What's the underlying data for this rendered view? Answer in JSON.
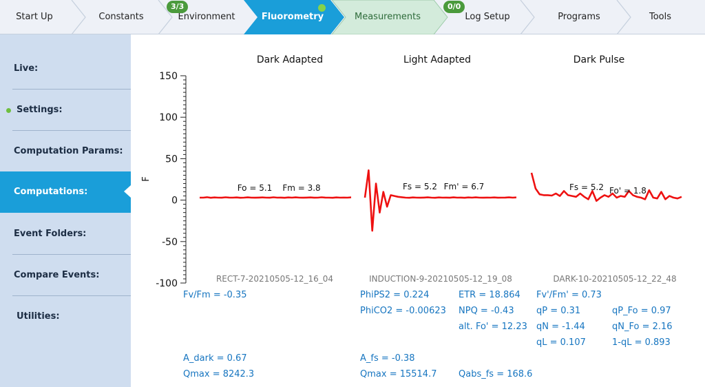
{
  "nav": {
    "tabs": [
      {
        "label": "Start Up",
        "badge": ""
      },
      {
        "label": "Constants",
        "badge": ""
      },
      {
        "label": "Environment",
        "badge": "3/3"
      },
      {
        "label": "Fluorometry",
        "badge": ""
      },
      {
        "label": "Measurements",
        "badge": ""
      },
      {
        "label": "Log Setup",
        "badge": "0/0"
      },
      {
        "label": "Programs",
        "badge": ""
      },
      {
        "label": "Tools",
        "badge": ""
      }
    ],
    "active_color": "#1a9ed9",
    "measurements_color": "#d3ebdb",
    "badge_color": "#4a9a3c"
  },
  "sidebar": {
    "items": [
      {
        "label": "Live:"
      },
      {
        "label": "Settings:"
      },
      {
        "label": "Computation Params:"
      },
      {
        "label": "Computations:"
      },
      {
        "label": "Event Folders:"
      },
      {
        "label": "Compare Events:"
      },
      {
        "label": "Utilities:"
      }
    ],
    "active_index": 3,
    "bg_color": "#cfddef"
  },
  "chart_data": {
    "type": "line",
    "ylabel": "F",
    "ylim": [
      -100,
      150
    ],
    "yticks": [
      "150",
      "100",
      "50",
      "0",
      "-50",
      "-100"
    ],
    "line_color": "#ee1111",
    "panels": [
      {
        "title": "Dark Adapted",
        "event": "RECT-7-20210505-12_16_04",
        "labels": [
          "Fo = 5.1",
          "Fm = 3.8"
        ],
        "values": [
          3,
          3,
          3.5,
          2.8,
          3.2,
          3,
          2.9,
          3.4,
          3.1,
          3,
          3.2,
          2.8,
          3,
          3.3,
          3,
          2.9,
          3.1,
          3.2,
          3,
          2.9,
          3.4,
          3,
          3.1,
          2.8,
          3.2,
          3,
          3.3,
          3,
          2.9,
          3.1,
          3.2,
          2.9,
          3,
          3.4,
          3.1,
          3,
          2.8,
          3.2,
          3,
          3.1,
          3,
          3.3
        ]
      },
      {
        "title": "Light Adapted",
        "event": "INDUCTION-9-20210505-12_19_08",
        "labels": [
          "Fs = 5.2",
          "Fm' = 6.7"
        ],
        "values": [
          3,
          36,
          -37,
          20,
          -15,
          10,
          -8,
          6,
          5,
          4,
          3.5,
          3,
          2.8,
          3.2,
          3,
          2.9,
          3.1,
          3.3,
          3,
          2.8,
          3.2,
          3,
          3.1,
          2.9,
          3.3,
          3,
          3.1,
          2.8,
          3.2,
          3,
          3.3,
          3,
          2.9,
          3.1,
          3,
          3.2,
          2.9,
          3,
          3.1,
          3.3,
          3,
          3.2
        ]
      },
      {
        "title": "Dark Pulse",
        "event": "DARK-10-20210505-12_22_48",
        "labels": [
          "Fs = 5.2",
          "Fo' = 1.8"
        ],
        "values": [
          33,
          14,
          7,
          6,
          6,
          5.5,
          8,
          5,
          11,
          6,
          5,
          4,
          8,
          4,
          1,
          11,
          -1,
          3,
          6,
          4,
          8,
          3,
          5,
          4,
          11,
          6,
          4,
          3,
          1,
          12,
          3,
          2,
          10,
          1,
          5,
          3,
          2,
          4
        ]
      }
    ]
  },
  "results": {
    "dark": {
      "fvfm": "Fv/Fm = -0.35",
      "a_dark": "A_dark = 0.67",
      "qmax": "Qmax = 8242.3"
    },
    "light": {
      "phips2": "PhiPS2 = 0.224",
      "phico2": "PhiCO2 = -0.00623",
      "etr": "ETR = 18.864",
      "npq": "NPQ = -0.43",
      "alt_fo": "alt. Fo' = 12.23",
      "a_fs": "A_fs = -0.38",
      "qmax": "Qmax = 15514.7",
      "qabs_fs": "Qabs_fs = 168.6"
    },
    "pulse": {
      "fvfm_prime": "Fv'/Fm' = 0.73",
      "qp": "qP = 0.31",
      "qn": "qN = -1.44",
      "ql": "qL = 0.107",
      "qp_fo": "qP_Fo = 0.97",
      "qn_fo": "qN_Fo = 2.16",
      "one_minus_ql": "1-qL = 0.893"
    },
    "text_color": "#1675c0"
  }
}
